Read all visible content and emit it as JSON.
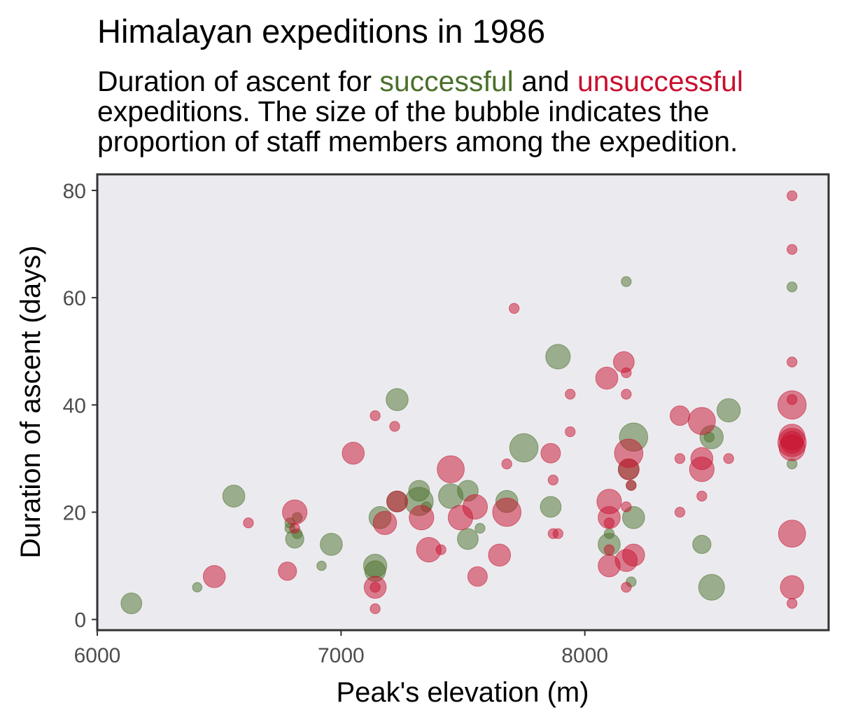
{
  "chart_data": {
    "type": "scatter",
    "title": "Himalayan expeditions in 1986",
    "subtitle": {
      "line1_pre": "Duration of ascent for ",
      "line1_success": "successful",
      "line1_mid": " and ",
      "line1_fail": "unsuccessful",
      "line2": "expeditions. The size of the bubble indicates the",
      "line3": "proportion of staff members among the expedition."
    },
    "xlabel": "Peak's elevation (m)",
    "ylabel": "Duration of ascent (days)",
    "xlim": [
      6000,
      9000
    ],
    "ylim": [
      -2,
      83
    ],
    "x_ticks": [
      6000,
      7000,
      8000
    ],
    "y_ticks": [
      0,
      20,
      40,
      60,
      80
    ],
    "grid": false,
    "legend": "none",
    "colors": {
      "success": "#4a7029",
      "fail": "#c8102e",
      "panel": "#ebebef",
      "frame": "#333333"
    },
    "series": [
      {
        "key": "success",
        "points": [
          {
            "x": 6140,
            "y": 3,
            "s": 0.55
          },
          {
            "x": 6410,
            "y": 6,
            "s": 0.1
          },
          {
            "x": 6560,
            "y": 23,
            "s": 0.6
          },
          {
            "x": 6790,
            "y": 17,
            "s": 0.12
          },
          {
            "x": 6790,
            "y": 18,
            "s": 0.12
          },
          {
            "x": 6810,
            "y": 15,
            "s": 0.45
          },
          {
            "x": 6820,
            "y": 16,
            "s": 0.12
          },
          {
            "x": 6820,
            "y": 19,
            "s": 0.12
          },
          {
            "x": 6920,
            "y": 10,
            "s": 0.1
          },
          {
            "x": 6960,
            "y": 14,
            "s": 0.6
          },
          {
            "x": 7140,
            "y": 10,
            "s": 0.65
          },
          {
            "x": 7140,
            "y": 9,
            "s": 0.55
          },
          {
            "x": 7160,
            "y": 19,
            "s": 0.6
          },
          {
            "x": 7230,
            "y": 41,
            "s": 0.6
          },
          {
            "x": 7230,
            "y": 22,
            "s": 0.55
          },
          {
            "x": 7320,
            "y": 24,
            "s": 0.55
          },
          {
            "x": 7320,
            "y": 22,
            "s": 0.85
          },
          {
            "x": 7350,
            "y": 21,
            "s": 0.12
          },
          {
            "x": 7450,
            "y": 23,
            "s": 0.7
          },
          {
            "x": 7520,
            "y": 24,
            "s": 0.55
          },
          {
            "x": 7520,
            "y": 15,
            "s": 0.55
          },
          {
            "x": 7570,
            "y": 17,
            "s": 0.12
          },
          {
            "x": 7680,
            "y": 22,
            "s": 0.6
          },
          {
            "x": 7750,
            "y": 32,
            "s": 0.85
          },
          {
            "x": 7860,
            "y": 21,
            "s": 0.55
          },
          {
            "x": 7890,
            "y": 49,
            "s": 0.7
          },
          {
            "x": 8100,
            "y": 14,
            "s": 0.6
          },
          {
            "x": 8100,
            "y": 16,
            "s": 0.12
          },
          {
            "x": 8170,
            "y": 63,
            "s": 0.12
          },
          {
            "x": 8180,
            "y": 28,
            "s": 0.55
          },
          {
            "x": 8190,
            "y": 25,
            "s": 0.12
          },
          {
            "x": 8190,
            "y": 7,
            "s": 0.12
          },
          {
            "x": 8200,
            "y": 34,
            "s": 0.85
          },
          {
            "x": 8200,
            "y": 19,
            "s": 0.6
          },
          {
            "x": 8480,
            "y": 14,
            "s": 0.45
          },
          {
            "x": 8510,
            "y": 34,
            "s": 0.12
          },
          {
            "x": 8520,
            "y": 34,
            "s": 0.65
          },
          {
            "x": 8520,
            "y": 6,
            "s": 0.75
          },
          {
            "x": 8590,
            "y": 39,
            "s": 0.65
          },
          {
            "x": 8850,
            "y": 62,
            "s": 0.12
          },
          {
            "x": 8850,
            "y": 29,
            "s": 0.12
          }
        ]
      },
      {
        "key": "fail",
        "points": [
          {
            "x": 6480,
            "y": 8,
            "s": 0.6
          },
          {
            "x": 6620,
            "y": 18,
            "s": 0.12
          },
          {
            "x": 6780,
            "y": 9,
            "s": 0.45
          },
          {
            "x": 6810,
            "y": 20,
            "s": 0.7
          },
          {
            "x": 6810,
            "y": 17,
            "s": 0.12
          },
          {
            "x": 7050,
            "y": 31,
            "s": 0.6
          },
          {
            "x": 7140,
            "y": 38,
            "s": 0.12
          },
          {
            "x": 7140,
            "y": 6,
            "s": 0.6
          },
          {
            "x": 7140,
            "y": 6,
            "s": 0.12
          },
          {
            "x": 7140,
            "y": 2,
            "s": 0.12
          },
          {
            "x": 7180,
            "y": 18,
            "s": 0.65
          },
          {
            "x": 7220,
            "y": 36,
            "s": 0.12
          },
          {
            "x": 7230,
            "y": 22,
            "s": 0.55
          },
          {
            "x": 7330,
            "y": 19,
            "s": 0.7
          },
          {
            "x": 7360,
            "y": 13,
            "s": 0.7
          },
          {
            "x": 7410,
            "y": 13,
            "s": 0.12
          },
          {
            "x": 7450,
            "y": 28,
            "s": 0.8
          },
          {
            "x": 7490,
            "y": 19,
            "s": 0.7
          },
          {
            "x": 7550,
            "y": 21,
            "s": 0.7
          },
          {
            "x": 7560,
            "y": 8,
            "s": 0.5
          },
          {
            "x": 7650,
            "y": 12,
            "s": 0.6
          },
          {
            "x": 7680,
            "y": 29,
            "s": 0.12
          },
          {
            "x": 7680,
            "y": 20,
            "s": 0.85
          },
          {
            "x": 7710,
            "y": 58,
            "s": 0.12
          },
          {
            "x": 7860,
            "y": 31,
            "s": 0.5
          },
          {
            "x": 7870,
            "y": 26,
            "s": 0.12
          },
          {
            "x": 7870,
            "y": 16,
            "s": 0.12
          },
          {
            "x": 7890,
            "y": 16,
            "s": 0.12
          },
          {
            "x": 7940,
            "y": 42,
            "s": 0.12
          },
          {
            "x": 7940,
            "y": 35,
            "s": 0.12
          },
          {
            "x": 8090,
            "y": 45,
            "s": 0.6
          },
          {
            "x": 8100,
            "y": 22,
            "s": 0.7
          },
          {
            "x": 8100,
            "y": 19,
            "s": 0.6
          },
          {
            "x": 8100,
            "y": 18,
            "s": 0.12
          },
          {
            "x": 8100,
            "y": 13,
            "s": 0.12
          },
          {
            "x": 8100,
            "y": 10,
            "s": 0.6
          },
          {
            "x": 8160,
            "y": 48,
            "s": 0.55
          },
          {
            "x": 8170,
            "y": 46,
            "s": 0.12
          },
          {
            "x": 8170,
            "y": 42,
            "s": 0.12
          },
          {
            "x": 8170,
            "y": 21,
            "s": 0.12
          },
          {
            "x": 8170,
            "y": 11,
            "s": 0.6
          },
          {
            "x": 8170,
            "y": 6,
            "s": 0.12
          },
          {
            "x": 8180,
            "y": 31,
            "s": 0.85
          },
          {
            "x": 8180,
            "y": 28,
            "s": 0.55
          },
          {
            "x": 8190,
            "y": 25,
            "s": 0.12
          },
          {
            "x": 8200,
            "y": 12,
            "s": 0.6
          },
          {
            "x": 8390,
            "y": 38,
            "s": 0.5
          },
          {
            "x": 8390,
            "y": 30,
            "s": 0.12
          },
          {
            "x": 8390,
            "y": 20,
            "s": 0.12
          },
          {
            "x": 8480,
            "y": 37,
            "s": 0.8
          },
          {
            "x": 8480,
            "y": 30,
            "s": 0.6
          },
          {
            "x": 8480,
            "y": 28,
            "s": 0.7
          },
          {
            "x": 8480,
            "y": 23,
            "s": 0.12
          },
          {
            "x": 8590,
            "y": 30,
            "s": 0.12
          },
          {
            "x": 8850,
            "y": 79,
            "s": 0.12
          },
          {
            "x": 8850,
            "y": 69,
            "s": 0.12
          },
          {
            "x": 8850,
            "y": 48,
            "s": 0.12
          },
          {
            "x": 8850,
            "y": 41,
            "s": 0.12
          },
          {
            "x": 8850,
            "y": 40,
            "s": 0.85
          },
          {
            "x": 8850,
            "y": 34,
            "s": 0.75
          },
          {
            "x": 8850,
            "y": 33,
            "s": 0.85
          },
          {
            "x": 8850,
            "y": 33,
            "s": 0.6
          },
          {
            "x": 8850,
            "y": 32,
            "s": 0.75
          },
          {
            "x": 8850,
            "y": 16,
            "s": 0.8
          },
          {
            "x": 8850,
            "y": 6,
            "s": 0.65
          },
          {
            "x": 8850,
            "y": 3,
            "s": 0.12
          }
        ]
      }
    ]
  }
}
